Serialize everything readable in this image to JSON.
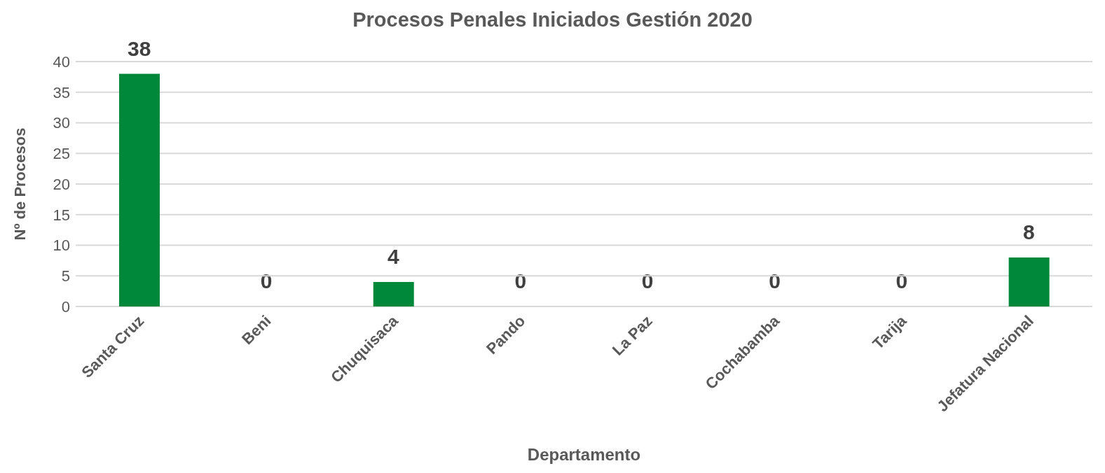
{
  "chart_data": {
    "type": "bar",
    "title": "Procesos Penales Iniciados Gestión 2020",
    "xlabel": "Departamento",
    "ylabel": "Nº de Procesos",
    "categories": [
      "Santa Cruz",
      "Beni",
      "Chuquisaca",
      "Pando",
      "La Paz",
      "Cochabamba",
      "Tarija",
      "Jefatura Nacional"
    ],
    "values": [
      38,
      0,
      4,
      0,
      0,
      0,
      0,
      8
    ],
    "color": "#00883a",
    "ylim": [
      0,
      40
    ],
    "yticks": [
      0,
      5,
      10,
      15,
      20,
      25,
      30,
      35,
      40
    ],
    "grid": "y",
    "data_labels": true
  }
}
